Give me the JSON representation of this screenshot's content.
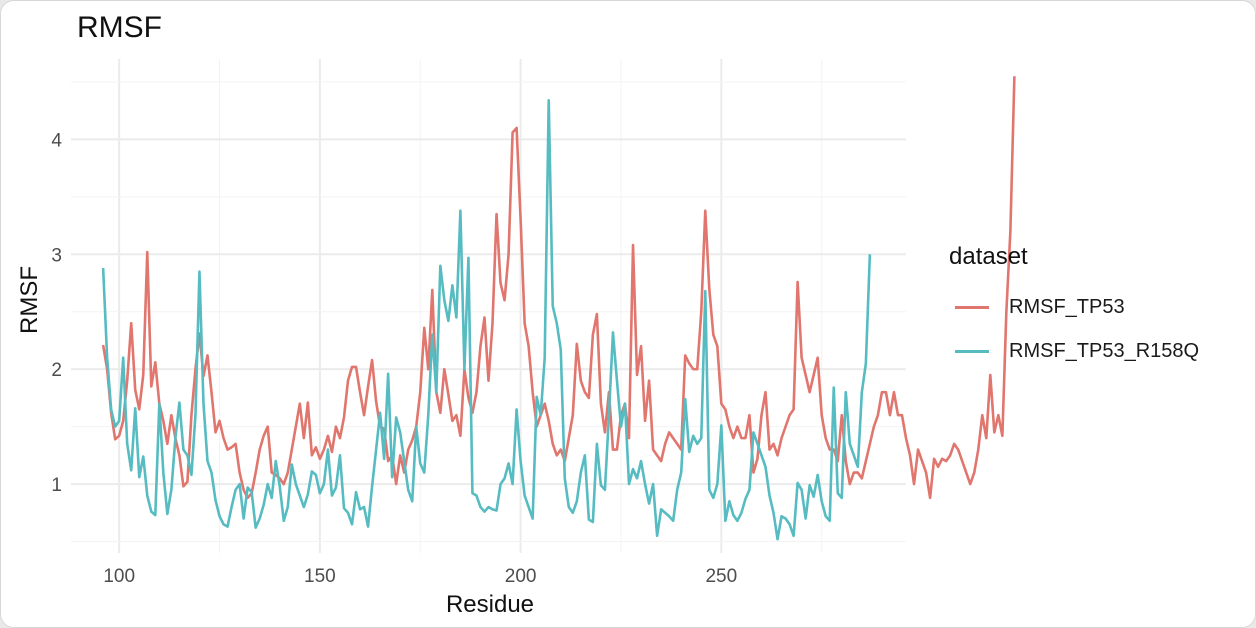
{
  "chart_data": {
    "type": "line",
    "title": "RMSF",
    "xlabel": "Residue",
    "ylabel": "RMSF",
    "xlim": [
      88,
      296
    ],
    "ylim": [
      0.4,
      4.7
    ],
    "xticks": [
      100,
      150,
      200,
      250
    ],
    "yticks": [
      1,
      2,
      3,
      4
    ],
    "grid": true,
    "legend": {
      "title": "dataset",
      "position": "right"
    },
    "x_start": 96,
    "series": [
      {
        "name": "RMSF_TP53",
        "color": "#E0766D",
        "values": [
          2.21,
          2.0,
          1.62,
          1.39,
          1.42,
          1.55,
          1.9,
          2.4,
          1.82,
          1.65,
          1.95,
          3.02,
          1.85,
          2.06,
          1.7,
          1.55,
          1.35,
          1.6,
          1.4,
          1.25,
          0.98,
          1.02,
          1.6,
          2.0,
          2.31,
          1.94,
          2.12,
          1.8,
          1.45,
          1.55,
          1.4,
          1.3,
          1.32,
          1.35,
          1.1,
          0.95,
          0.88,
          0.92,
          1.1,
          1.3,
          1.42,
          1.5,
          1.1,
          1.08,
          1.05,
          1.0,
          1.1,
          1.3,
          1.5,
          1.7,
          1.4,
          1.71,
          1.25,
          1.32,
          1.22,
          1.3,
          1.42,
          1.28,
          1.5,
          1.4,
          1.58,
          1.9,
          2.02,
          2.02,
          1.8,
          1.6,
          1.85,
          2.08,
          1.72,
          1.5,
          1.48,
          1.2,
          1.25,
          1.0,
          1.25,
          1.1,
          1.3,
          1.38,
          1.5,
          1.8,
          2.36,
          2.0,
          2.69,
          1.8,
          1.62,
          2.0,
          1.78,
          1.55,
          1.6,
          1.42,
          2.0,
          1.75,
          1.62,
          1.8,
          2.2,
          2.45,
          1.9,
          2.4,
          3.35,
          2.75,
          2.6,
          3.0,
          4.06,
          4.1,
          3.3,
          2.4,
          2.2,
          1.8,
          1.5,
          1.6,
          1.7,
          1.55,
          1.35,
          1.25,
          1.3,
          1.2,
          1.4,
          1.6,
          2.22,
          1.9,
          1.8,
          1.75,
          2.3,
          2.48,
          1.7,
          1.45,
          1.8,
          1.3,
          1.3,
          1.6,
          1.7,
          1.4,
          3.08,
          1.95,
          2.2,
          1.55,
          1.9,
          1.3,
          1.25,
          1.2,
          1.35,
          1.45,
          1.4,
          1.35,
          1.3,
          2.12,
          2.05,
          2.0,
          2.0,
          2.5,
          3.38,
          2.7,
          2.3,
          2.2,
          1.7,
          1.65,
          1.5,
          1.4,
          1.5,
          1.4,
          1.4,
          1.6,
          1.1,
          1.22,
          1.6,
          1.8,
          1.3,
          1.35,
          1.25,
          1.4,
          1.5,
          1.6,
          1.65,
          2.76,
          2.1,
          1.95,
          1.8,
          1.95,
          2.1,
          1.6,
          1.4,
          1.3,
          1.3,
          1.2,
          1.6,
          1.2,
          1.0,
          1.1,
          1.1,
          1.05,
          1.2,
          1.35,
          1.5,
          1.6,
          1.8,
          1.8,
          1.6,
          1.8,
          1.6,
          1.6,
          1.4,
          1.25,
          1.0,
          1.3,
          1.2,
          1.1,
          0.88,
          1.22,
          1.15,
          1.22,
          1.2,
          1.25,
          1.35,
          1.3,
          1.2,
          1.1,
          1.0,
          1.1,
          1.3,
          1.6,
          1.4,
          1.95,
          1.45,
          1.6,
          1.42,
          2.5,
          3.2,
          4.55
        ]
      },
      {
        "name": "RMSF_TP53_R158Q",
        "color": "#56BCC2",
        "values": [
          2.88,
          2.1,
          1.65,
          1.5,
          1.55,
          2.1,
          1.35,
          1.12,
          1.66,
          1.06,
          1.24,
          0.9,
          0.76,
          0.73,
          1.7,
          1.1,
          0.74,
          0.95,
          1.4,
          1.71,
          1.3,
          1.25,
          1.08,
          1.6,
          2.85,
          1.7,
          1.2,
          1.1,
          0.86,
          0.72,
          0.65,
          0.63,
          0.8,
          0.95,
          1.0,
          0.7,
          0.97,
          0.93,
          0.62,
          0.7,
          0.82,
          1.0,
          0.88,
          1.2,
          0.98,
          0.68,
          0.8,
          1.17,
          1.0,
          0.9,
          0.8,
          0.91,
          1.11,
          1.08,
          0.92,
          1.0,
          1.3,
          0.9,
          0.97,
          1.25,
          0.79,
          0.75,
          0.65,
          0.93,
          0.78,
          0.8,
          0.63,
          0.98,
          1.3,
          1.62,
          1.22,
          1.96,
          1.06,
          1.58,
          1.45,
          1.2,
          0.95,
          0.85,
          1.5,
          1.18,
          1.1,
          1.6,
          2.3,
          1.8,
          2.9,
          2.6,
          2.42,
          2.73,
          2.45,
          3.38,
          2.0,
          2.97,
          0.92,
          0.9,
          0.8,
          0.76,
          0.8,
          0.78,
          0.77,
          1.0,
          1.05,
          1.18,
          1.0,
          1.65,
          1.2,
          0.9,
          0.8,
          0.7,
          1.76,
          1.6,
          2.1,
          4.34,
          2.55,
          2.4,
          2.17,
          1.05,
          0.8,
          0.75,
          0.85,
          1.1,
          1.25,
          0.69,
          0.67,
          1.35,
          0.99,
          0.95,
          1.6,
          2.32,
          1.9,
          1.5,
          1.7,
          1.0,
          1.13,
          1.05,
          1.2,
          1.0,
          0.83,
          1.0,
          0.55,
          0.78,
          0.75,
          0.72,
          0.68,
          0.95,
          1.1,
          1.74,
          1.28,
          1.42,
          1.35,
          1.4,
          2.68,
          0.95,
          0.88,
          1.0,
          1.51,
          0.68,
          0.85,
          0.73,
          0.68,
          0.75,
          0.87,
          0.95,
          1.45,
          1.35,
          1.25,
          1.15,
          0.9,
          0.75,
          0.52,
          0.72,
          0.7,
          0.65,
          0.55,
          1.01,
          0.95,
          0.7,
          0.99,
          0.89,
          1.08,
          0.85,
          0.72,
          0.68,
          1.84,
          0.92,
          0.88,
          1.8,
          1.35,
          1.25,
          1.15,
          1.8,
          2.05,
          3.0
        ]
      }
    ]
  }
}
